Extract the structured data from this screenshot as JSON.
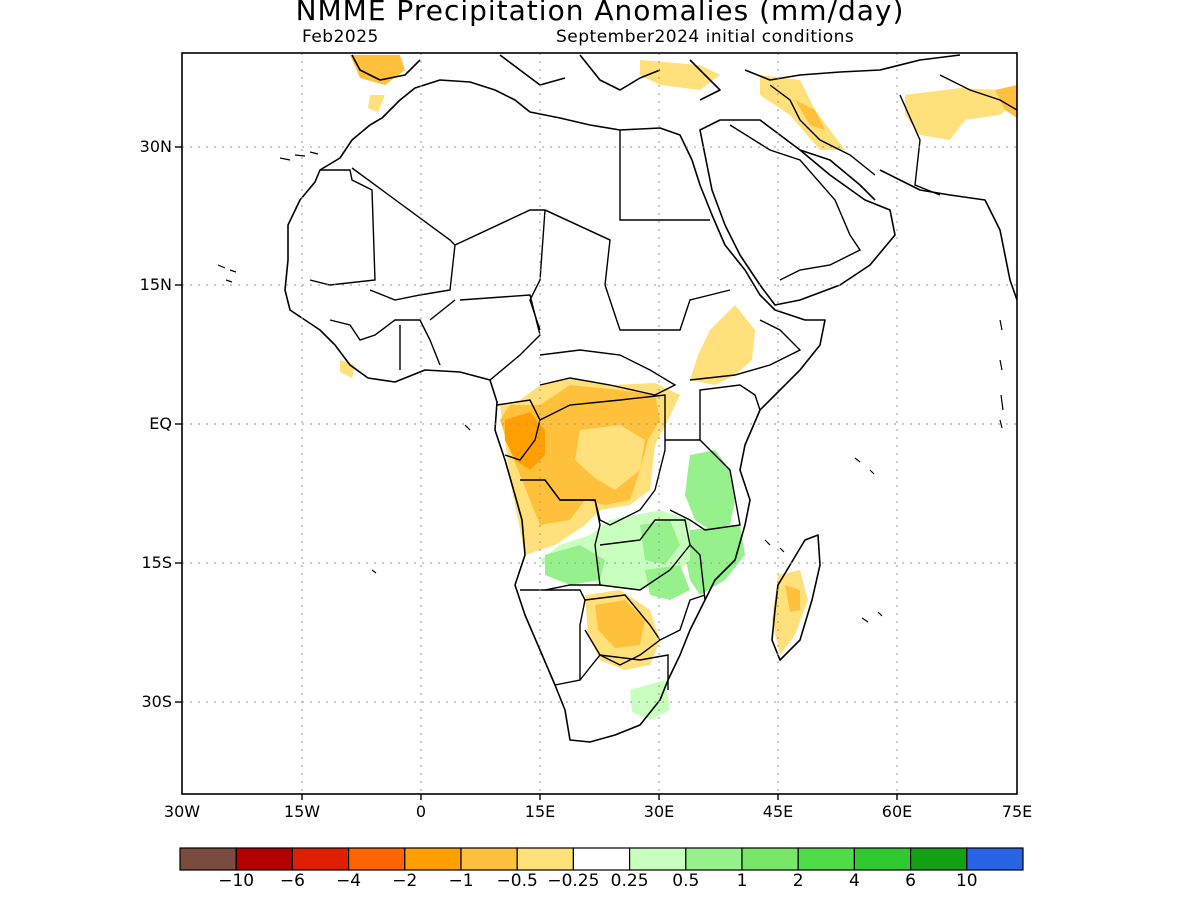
{
  "title": "NMME Precipitation Anomalies (mm/day)",
  "subtitle_left": "Feb2025",
  "subtitle_right": "September2024 initial conditions",
  "y_axis_labels": [
    "30N",
    "15N",
    "EQ",
    "15S",
    "30S"
  ],
  "x_axis_labels": [
    "30W",
    "15W",
    "0",
    "15E",
    "30E",
    "45E",
    "60E",
    "75E"
  ],
  "colorbar": {
    "colors": [
      "#7a4b3e",
      "#b40000",
      "#e01e00",
      "#ff6400",
      "#ffa000",
      "#ffc03c",
      "#ffe07a",
      "#ffffff",
      "#c8ffbe",
      "#96f08c",
      "#78e668",
      "#50dc48",
      "#32c832",
      "#14a014",
      "#2864e6"
    ],
    "labels": [
      "−10",
      "−6",
      "−4",
      "−2",
      "−1",
      "−0.5",
      "−0.25",
      "0.25",
      "0.5",
      "1",
      "2",
      "4",
      "6",
      "10"
    ]
  }
}
